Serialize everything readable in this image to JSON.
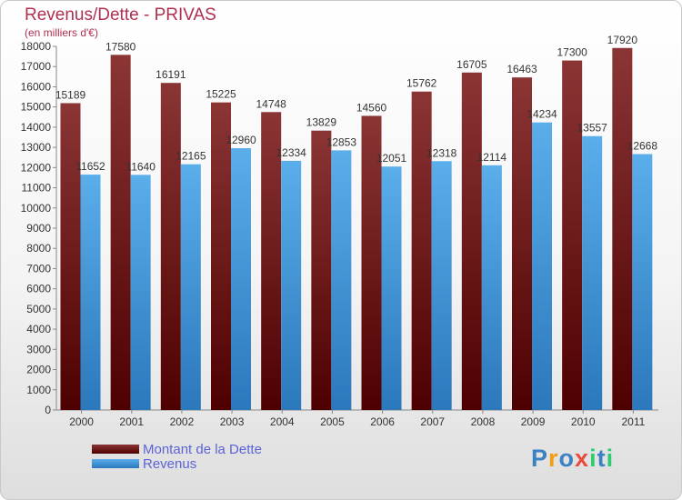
{
  "title": "Revenus/Dette - PRIVAS",
  "subtitle": "(en milliers d'€)",
  "logo": {
    "text": "Proxiti",
    "letters": [
      "P",
      "r",
      "o",
      "x",
      "i",
      "t",
      "i"
    ],
    "colors": [
      "#3b82c4",
      "#f39c12",
      "#3b82c4",
      "#e74c3c",
      "#2ecc71",
      "#3b82c4",
      "#2ecc71"
    ]
  },
  "chart_data": {
    "type": "bar",
    "categories": [
      "2000",
      "2001",
      "2002",
      "2003",
      "2004",
      "2005",
      "2006",
      "2007",
      "2008",
      "2009",
      "2010",
      "2011"
    ],
    "series": [
      {
        "name": "Montant de la Dette",
        "color": "#7a2a2a",
        "values": [
          15189,
          17580,
          16191,
          15225,
          14748,
          13829,
          14560,
          15762,
          16705,
          16463,
          17300,
          17920
        ]
      },
      {
        "name": "Revenus",
        "color": "#4aa3e6",
        "values": [
          11652,
          11640,
          12165,
          12960,
          12334,
          12853,
          12051,
          12318,
          12114,
          14234,
          13557,
          12668
        ]
      }
    ],
    "yticks": [
      0,
      1000,
      2000,
      3000,
      4000,
      5000,
      6000,
      7000,
      8000,
      9000,
      10000,
      11000,
      12000,
      13000,
      14000,
      15000,
      16000,
      17000,
      18000
    ],
    "ylim": [
      0,
      18000
    ],
    "grid": false,
    "legend_position": "bottom-left"
  }
}
